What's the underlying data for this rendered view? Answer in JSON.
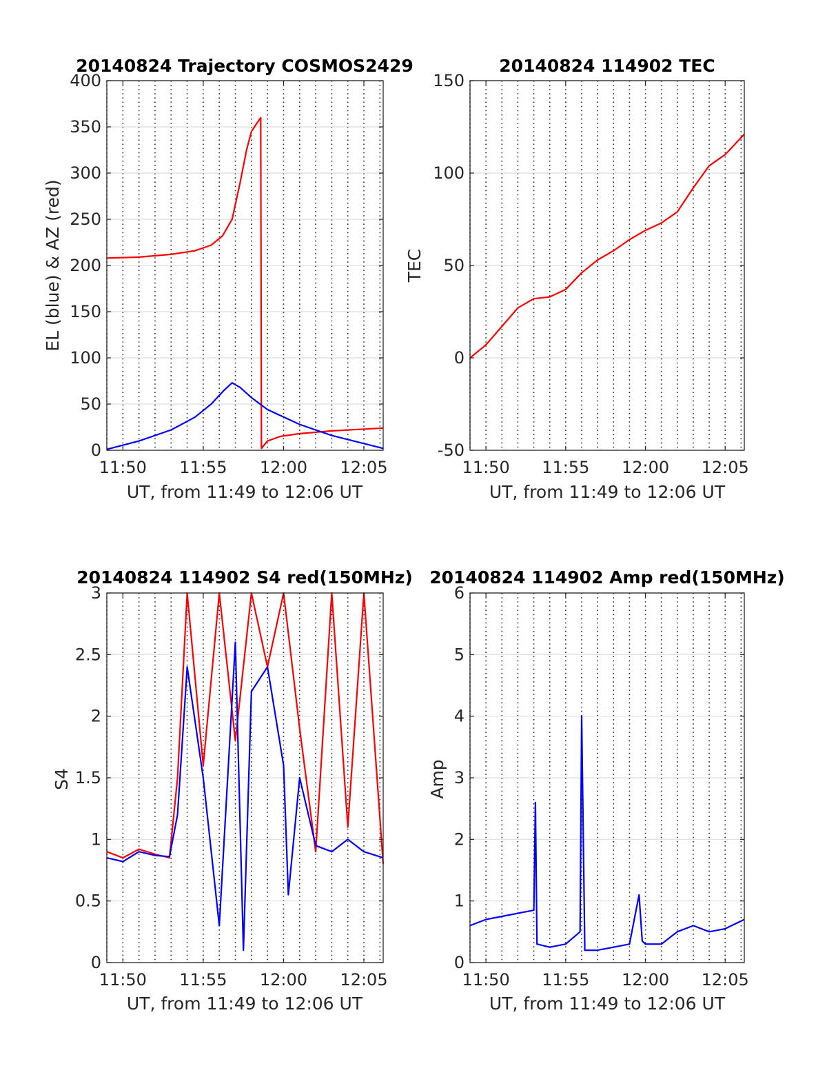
{
  "figure": {
    "panels": [
      {
        "id": "p1",
        "title": "20140824 Trajectory COSMOS2429",
        "xlabel": "UT, from 11:49 to 12:06 UT",
        "ylabel": "EL (blue) & AZ (red)"
      },
      {
        "id": "p2",
        "title": "20140824 114902 TEC",
        "xlabel": "UT, from 11:49 to 12:06 UT",
        "ylabel": "TEC"
      },
      {
        "id": "p3",
        "title": "20140824 114902 S4 red(150MHz)",
        "xlabel": "UT, from 11:49 to 12:06 UT",
        "ylabel": "S4"
      },
      {
        "id": "p4",
        "title": "20140824 114902 Amp red(150MHz)",
        "xlabel": "UT, from 11:49 to 12:06 UT",
        "ylabel": "Amp"
      }
    ]
  },
  "chart_data": [
    {
      "type": "line",
      "title": "20140824 Trajectory COSMOS2429",
      "xlabel": "UT, from 11:49 to 12:06 UT",
      "ylabel": "EL (blue) & AZ (red)",
      "x_unit": "UT minutes after 11:49",
      "xlim": [
        0,
        17.2
      ],
      "ylim": [
        0,
        400
      ],
      "xticks": [
        1,
        6,
        11,
        16
      ],
      "xtick_labels": [
        "11:50",
        "11:55",
        "12:00",
        "12:05"
      ],
      "yticks": [
        0,
        50,
        100,
        150,
        200,
        250,
        300,
        350,
        400
      ],
      "ytick_labels": [
        "0",
        "50",
        "100",
        "150",
        "200",
        "250",
        "300",
        "350",
        "400"
      ],
      "grid": true,
      "colors": {
        "azimuth": "#ff0000",
        "elevation": "#0000ff"
      },
      "series": [
        {
          "color": "#ff0000",
          "x": [
            0,
            2,
            4,
            5.5,
            6.5,
            7.2,
            7.8,
            8.3,
            8.7,
            9.0,
            9.3,
            9.5,
            9.58,
            9.6,
            9.62,
            10.0,
            10.8,
            12,
            14,
            17.2
          ],
          "y": [
            208,
            209,
            212,
            216,
            222,
            232,
            250,
            290,
            325,
            345,
            353,
            358,
            360,
            200,
            2,
            10,
            15,
            18,
            21,
            24
          ]
        },
        {
          "color": "#0000ff",
          "x": [
            0,
            2,
            4,
            5.5,
            6.5,
            7.3,
            7.8,
            8.3,
            9.0,
            10,
            12,
            14,
            17.2
          ],
          "y": [
            1,
            10,
            22,
            36,
            50,
            65,
            73,
            68,
            57,
            44,
            28,
            16,
            2
          ]
        }
      ]
    },
    {
      "type": "line",
      "title": "20140824 114902 TEC",
      "xlabel": "UT, from 11:49 to 12:06 UT",
      "ylabel": "TEC",
      "x_unit": "UT minutes after 11:49",
      "xlim": [
        0,
        17.2
      ],
      "ylim": [
        -50,
        150
      ],
      "xticks": [
        1,
        6,
        11,
        16
      ],
      "xtick_labels": [
        "11:50",
        "11:55",
        "12:00",
        "12:05"
      ],
      "yticks": [
        -50,
        0,
        50,
        100,
        150
      ],
      "ytick_labels": [
        "-50",
        "0",
        "50",
        "100",
        "150"
      ],
      "grid": true,
      "colors": {
        "tec": "#ff0000"
      },
      "series": [
        {
          "color": "#ff0000",
          "x": [
            0,
            1,
            2,
            3,
            4,
            5,
            6,
            7,
            8,
            9,
            10,
            11,
            12,
            13,
            14,
            15,
            16,
            17.2
          ],
          "y": [
            0,
            7,
            17,
            27,
            32,
            33,
            37,
            46,
            53,
            58,
            64,
            69,
            73,
            79,
            92,
            104,
            110,
            121
          ]
        }
      ]
    },
    {
      "type": "line",
      "title": "20140824 114902 S4 red(150MHz)",
      "xlabel": "UT, from 11:49 to 12:06 UT",
      "ylabel": "S4",
      "x_unit": "UT minutes after 11:49",
      "xlim": [
        0,
        17.2
      ],
      "ylim": [
        0,
        3
      ],
      "xticks": [
        1,
        6,
        11,
        16
      ],
      "xtick_labels": [
        "11:50",
        "11:55",
        "12:00",
        "12:05"
      ],
      "yticks": [
        0,
        0.5,
        1,
        1.5,
        2,
        2.5,
        3
      ],
      "ytick_labels": [
        "0",
        "0.5",
        "1",
        "1.5",
        "2",
        "2.5",
        "3"
      ],
      "grid": true,
      "colors": {
        "red": "#ff0000",
        "blue": "#0000ff"
      },
      "series": [
        {
          "color": "#ff0000",
          "x": [
            0,
            1,
            2,
            3,
            3.9,
            4.4,
            5,
            6,
            7,
            8,
            9,
            10,
            11,
            12,
            13,
            14,
            15,
            16,
            17.2
          ],
          "y": [
            0.9,
            0.85,
            0.92,
            0.88,
            0.85,
            1.5,
            3,
            1.6,
            3,
            1.8,
            3,
            2.4,
            3,
            1.9,
            0.9,
            3,
            1.1,
            3,
            0.8
          ]
        },
        {
          "color": "#0000ff",
          "x": [
            0,
            1,
            2,
            3,
            3.9,
            4.4,
            5,
            6,
            7,
            8,
            8.5,
            9,
            10,
            11,
            11.3,
            12,
            13,
            14,
            15,
            16,
            17.2
          ],
          "y": [
            0.85,
            0.82,
            0.9,
            0.87,
            0.86,
            1.2,
            2.4,
            1.5,
            0.3,
            2.6,
            0.1,
            2.2,
            2.4,
            1.6,
            0.55,
            1.5,
            0.95,
            0.9,
            1.0,
            0.9,
            0.85
          ]
        }
      ]
    },
    {
      "type": "line",
      "title": "20140824 114902 Amp red(150MHz)",
      "xlabel": "UT, from 11:49 to 12:06 UT",
      "ylabel": "Amp",
      "x_unit": "UT minutes after 11:49",
      "xlim": [
        0,
        17.2
      ],
      "ylim": [
        0,
        6
      ],
      "xticks": [
        1,
        6,
        11,
        16
      ],
      "xtick_labels": [
        "11:50",
        "11:55",
        "12:00",
        "12:05"
      ],
      "yticks": [
        0,
        1,
        2,
        3,
        4,
        5,
        6
      ],
      "ytick_labels": [
        "0",
        "1",
        "2",
        "3",
        "4",
        "5",
        "6"
      ],
      "grid": true,
      "colors": {
        "amp": "#0000ff"
      },
      "series": [
        {
          "color": "#0000ff",
          "x": [
            0,
            1,
            2,
            3,
            4,
            4.1,
            4.2,
            5,
            6,
            6.9,
            7.0,
            7.2,
            8,
            9,
            10,
            10.6,
            10.8,
            11,
            12,
            13,
            14,
            15,
            16,
            17.2
          ],
          "y": [
            0.6,
            0.7,
            0.75,
            0.8,
            0.85,
            2.6,
            0.3,
            0.25,
            0.3,
            0.5,
            4.0,
            0.2,
            0.2,
            0.25,
            0.3,
            1.1,
            0.35,
            0.3,
            0.3,
            0.5,
            0.6,
            0.5,
            0.55,
            0.7
          ]
        }
      ]
    }
  ]
}
